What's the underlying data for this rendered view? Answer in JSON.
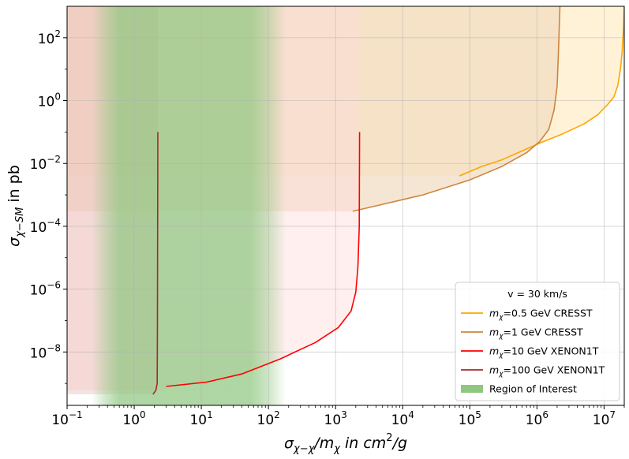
{
  "chart_data": {
    "type": "line",
    "title": "",
    "xlabel": "σχ−χ/mχ in cm²/g",
    "ylabel": "σχ−SM in pb",
    "x_scale": "log",
    "y_scale": "log",
    "xlim": [
      0.1,
      20000000
    ],
    "ylim": [
      2e-10,
      1000
    ],
    "x_ticks": [
      {
        "value": 0.1,
        "base": "10",
        "exp": "−1"
      },
      {
        "value": 1,
        "base": "10",
        "exp": "0"
      },
      {
        "value": 10,
        "base": "10",
        "exp": "1"
      },
      {
        "value": 100,
        "base": "10",
        "exp": "2"
      },
      {
        "value": 1000,
        "base": "10",
        "exp": "3"
      },
      {
        "value": 10000,
        "base": "10",
        "exp": "4"
      },
      {
        "value": 100000,
        "base": "10",
        "exp": "5"
      },
      {
        "value": 1000000,
        "base": "10",
        "exp": "6"
      },
      {
        "value": 10000000,
        "base": "10",
        "exp": "7"
      }
    ],
    "y_ticks": [
      {
        "value": 1e-08,
        "base": "10",
        "exp": "−8"
      },
      {
        "value": 1e-06,
        "base": "10",
        "exp": "−6"
      },
      {
        "value": 0.0001,
        "base": "10",
        "exp": "−4"
      },
      {
        "value": 0.01,
        "base": "10",
        "exp": "−2"
      },
      {
        "value": 1,
        "base": "10",
        "exp": "0"
      },
      {
        "value": 100,
        "base": "10",
        "exp": "2"
      }
    ],
    "grid": true,
    "legend": {
      "placement": "lower-right",
      "title": "v = 30 km/s",
      "entries": [
        {
          "prefix": "m",
          "sub": "χ",
          "rest": "=0.5 GeV CRESST",
          "color": "#ffa500",
          "kind": "line"
        },
        {
          "prefix": "m",
          "sub": "χ",
          "rest": "=1 GeV CRESST",
          "color": "#cd853f",
          "kind": "line"
        },
        {
          "prefix": "m",
          "sub": "χ",
          "rest": "=10 GeV XENON1T",
          "color": "#ff0000",
          "kind": "line"
        },
        {
          "prefix": "m",
          "sub": "χ",
          "rest": "=100 GeV XENON1T",
          "color": "#a52a2a",
          "kind": "line"
        },
        {
          "prefix": "",
          "sub": "",
          "rest": "Region of Interest",
          "color": "#8fc780",
          "kind": "patch"
        }
      ]
    },
    "region_of_interest": {
      "x_range": [
        0.5,
        100
      ],
      "color": "#8fc780"
    },
    "series": [
      {
        "legend": "mχ=0.5 GeV CRESST",
        "color": "#ffa500",
        "fill": "#ffe9bd",
        "points": [
          [
            70000,
            0.004
          ],
          [
            150000,
            0.008
          ],
          [
            300000,
            0.013
          ],
          [
            600000,
            0.025
          ],
          [
            1200000,
            0.048
          ],
          [
            2500000,
            0.09
          ],
          [
            5000000,
            0.18
          ],
          [
            8000000,
            0.35
          ],
          [
            11000000,
            0.7
          ],
          [
            14000000,
            1.3
          ],
          [
            16000000,
            3
          ],
          [
            17500000,
            10
          ],
          [
            18500000,
            30
          ],
          [
            19500000,
            200
          ],
          [
            20000000,
            1000
          ]
        ],
        "fill_floor": 0.004
      },
      {
        "legend": "mχ=1 GeV CRESST",
        "color": "#cd853f",
        "fill": "#f1dcc0",
        "points": [
          [
            1800,
            0.0003
          ],
          [
            5000,
            0.0005
          ],
          [
            20000,
            0.001
          ],
          [
            100000,
            0.003
          ],
          [
            300000,
            0.008
          ],
          [
            700000,
            0.022
          ],
          [
            1100000,
            0.05
          ],
          [
            1500000,
            0.12
          ],
          [
            1800000,
            0.5
          ],
          [
            2000000,
            3
          ],
          [
            2100000,
            50
          ],
          [
            2200000,
            1000
          ]
        ],
        "fill_floor": 0.0003
      },
      {
        "legend": "mχ=10 GeV XENON1T",
        "color": "#ff0000",
        "fill": "#ffdbdc",
        "points": [
          [
            3,
            8e-10
          ],
          [
            12,
            1.1e-09
          ],
          [
            40,
            2e-09
          ],
          [
            150,
            6e-09
          ],
          [
            500,
            2e-08
          ],
          [
            1100,
            6e-08
          ],
          [
            1700,
            2e-07
          ],
          [
            2000,
            8e-07
          ],
          [
            2150,
            5e-06
          ],
          [
            2250,
            0.0001
          ],
          [
            2280,
            0.1
          ]
        ],
        "fill_floor": 6e-10
      },
      {
        "legend": "mχ=100 GeV XENON1T",
        "color": "#a52a2a",
        "fill": "#e0b2a8",
        "points": [
          [
            1.9,
            4.5e-10
          ],
          [
            2.1,
            6e-10
          ],
          [
            2.2,
            1e-09
          ],
          [
            2.22,
            1e-07
          ],
          [
            2.25,
            0.1
          ]
        ],
        "fill_floor": 4.5e-10
      }
    ]
  }
}
